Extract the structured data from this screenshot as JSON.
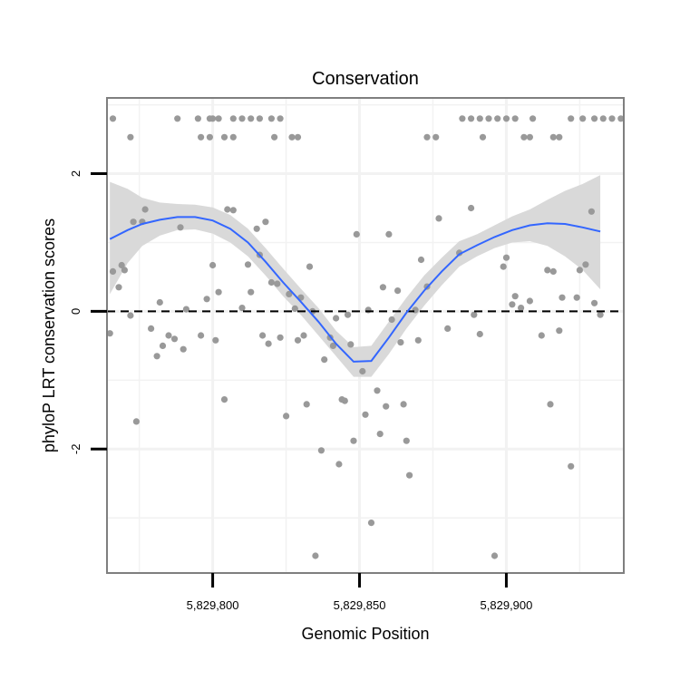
{
  "chart_data": {
    "type": "scatter",
    "title": "Conservation",
    "xlabel": "Genomic Position",
    "ylabel": "phyloP LRT conservation scores",
    "xlim": [
      5829764,
      5829940
    ],
    "ylim": [
      -3.8,
      3.1
    ],
    "x_ticks": [
      5829800,
      5829850,
      5829900
    ],
    "x_tick_labels": [
      "5,829,800",
      "5,829,850",
      "5,829,900"
    ],
    "y_ticks": [
      -2,
      0,
      2
    ],
    "y_tick_labels": [
      "-2",
      "0",
      "2"
    ],
    "grid": true,
    "reference_line": {
      "y": 0,
      "style": "dashed",
      "color": "#000000"
    },
    "colors": {
      "points": "#999999",
      "smooth": "#3366ff",
      "ribbon": "#d9d9d9",
      "panel_border": "#7f7f7f",
      "grid": "#f2f2f2"
    },
    "points": [
      [
        5829766,
        2.8
      ],
      [
        5829788,
        2.8
      ],
      [
        5829795,
        2.8
      ],
      [
        5829800,
        2.8
      ],
      [
        5829807,
        2.8
      ],
      [
        5829810,
        2.8
      ],
      [
        5829813,
        2.8
      ],
      [
        5829816,
        2.8
      ],
      [
        5829820,
        2.8
      ],
      [
        5829823,
        2.8
      ],
      [
        5829799,
        2.8
      ],
      [
        5829802,
        2.8
      ],
      [
        5829885,
        2.8
      ],
      [
        5829888,
        2.8
      ],
      [
        5829891,
        2.8
      ],
      [
        5829894,
        2.8
      ],
      [
        5829897,
        2.8
      ],
      [
        5829900,
        2.8
      ],
      [
        5829903,
        2.8
      ],
      [
        5829909,
        2.8
      ],
      [
        5829922,
        2.8
      ],
      [
        5829926,
        2.8
      ],
      [
        5829930,
        2.8
      ],
      [
        5829933,
        2.8
      ],
      [
        5829936,
        2.8
      ],
      [
        5829939,
        2.8
      ],
      [
        5829772,
        2.53
      ],
      [
        5829796,
        2.53
      ],
      [
        5829799,
        2.53
      ],
      [
        5829804,
        2.53
      ],
      [
        5829807,
        2.53
      ],
      [
        5829821,
        2.53
      ],
      [
        5829827,
        2.53
      ],
      [
        5829829,
        2.53
      ],
      [
        5829873,
        2.53
      ],
      [
        5829876,
        2.53
      ],
      [
        5829892,
        2.53
      ],
      [
        5829906,
        2.53
      ],
      [
        5829908,
        2.53
      ],
      [
        5829916,
        2.53
      ],
      [
        5829918,
        2.53
      ],
      [
        5829765,
        -0.32
      ],
      [
        5829766,
        0.58
      ],
      [
        5829768,
        0.35
      ],
      [
        5829769,
        0.67
      ],
      [
        5829770,
        0.6
      ],
      [
        5829772,
        -0.06
      ],
      [
        5829773,
        1.3
      ],
      [
        5829774,
        -1.6
      ],
      [
        5829776,
        1.3
      ],
      [
        5829777,
        1.48
      ],
      [
        5829779,
        -0.25
      ],
      [
        5829781,
        -0.65
      ],
      [
        5829782,
        0.13
      ],
      [
        5829783,
        -0.5
      ],
      [
        5829785,
        -0.35
      ],
      [
        5829787,
        -0.4
      ],
      [
        5829789,
        1.22
      ],
      [
        5829790,
        -0.55
      ],
      [
        5829791,
        0.03
      ],
      [
        5829796,
        -0.35
      ],
      [
        5829798,
        0.18
      ],
      [
        5829800,
        0.67
      ],
      [
        5829801,
        -0.42
      ],
      [
        5829802,
        0.28
      ],
      [
        5829804,
        -1.28
      ],
      [
        5829805,
        1.48
      ],
      [
        5829807,
        1.47
      ],
      [
        5829810,
        0.05
      ],
      [
        5829812,
        0.68
      ],
      [
        5829813,
        0.28
      ],
      [
        5829815,
        1.2
      ],
      [
        5829816,
        0.82
      ],
      [
        5829817,
        -0.35
      ],
      [
        5829818,
        1.3
      ],
      [
        5829819,
        -0.47
      ],
      [
        5829820,
        0.42
      ],
      [
        5829822,
        0.4
      ],
      [
        5829823,
        -0.38
      ],
      [
        5829825,
        -1.52
      ],
      [
        5829826,
        0.25
      ],
      [
        5829828,
        0.04
      ],
      [
        5829829,
        -0.42
      ],
      [
        5829830,
        0.2
      ],
      [
        5829831,
        -0.35
      ],
      [
        5829832,
        -1.35
      ],
      [
        5829833,
        0.65
      ],
      [
        5829834,
        0.0
      ],
      [
        5829835,
        -3.55
      ],
      [
        5829837,
        -2.02
      ],
      [
        5829838,
        -0.7
      ],
      [
        5829840,
        -0.38
      ],
      [
        5829841,
        -0.5
      ],
      [
        5829842,
        -0.1
      ],
      [
        5829843,
        -2.22
      ],
      [
        5829844,
        -1.28
      ],
      [
        5829845,
        -1.3
      ],
      [
        5829846,
        -0.05
      ],
      [
        5829847,
        -0.48
      ],
      [
        5829848,
        -1.88
      ],
      [
        5829849,
        1.12
      ],
      [
        5829851,
        -0.87
      ],
      [
        5829852,
        -1.5
      ],
      [
        5829853,
        0.02
      ],
      [
        5829854,
        -3.07
      ],
      [
        5829856,
        -1.15
      ],
      [
        5829857,
        -1.78
      ],
      [
        5829858,
        0.35
      ],
      [
        5829859,
        -1.38
      ],
      [
        5829860,
        1.12
      ],
      [
        5829861,
        -0.12
      ],
      [
        5829863,
        0.3
      ],
      [
        5829864,
        -0.45
      ],
      [
        5829865,
        -1.35
      ],
      [
        5829866,
        -1.88
      ],
      [
        5829867,
        -2.38
      ],
      [
        5829869,
        0.02
      ],
      [
        5829870,
        -0.42
      ],
      [
        5829871,
        0.75
      ],
      [
        5829873,
        0.36
      ],
      [
        5829877,
        1.35
      ],
      [
        5829880,
        -0.25
      ],
      [
        5829884,
        0.85
      ],
      [
        5829888,
        1.5
      ],
      [
        5829889,
        -0.05
      ],
      [
        5829891,
        -0.33
      ],
      [
        5829896,
        -3.55
      ],
      [
        5829899,
        0.65
      ],
      [
        5829900,
        0.78
      ],
      [
        5829902,
        0.1
      ],
      [
        5829903,
        0.22
      ],
      [
        5829905,
        0.05
      ],
      [
        5829908,
        0.15
      ],
      [
        5829912,
        -0.35
      ],
      [
        5829914,
        0.6
      ],
      [
        5829915,
        -1.35
      ],
      [
        5829916,
        0.58
      ],
      [
        5829918,
        -0.28
      ],
      [
        5829919,
        0.2
      ],
      [
        5829922,
        -2.25
      ],
      [
        5829924,
        0.2
      ],
      [
        5829925,
        0.6
      ],
      [
        5829927,
        0.68
      ],
      [
        5829929,
        1.45
      ],
      [
        5829930,
        0.12
      ],
      [
        5829932,
        -0.05
      ]
    ],
    "smooth": {
      "x": [
        5829765,
        5829771,
        5829776,
        5829782,
        5829788,
        5829794,
        5829800,
        5829806,
        5829812,
        5829818,
        5829824,
        5829830,
        5829836,
        5829842,
        5829848,
        5829854,
        5829860,
        5829866,
        5829872,
        5829878,
        5829884,
        5829890,
        5829896,
        5829902,
        5829908,
        5829914,
        5829920,
        5829926,
        5829932
      ],
      "y": [
        1.05,
        1.18,
        1.27,
        1.33,
        1.37,
        1.37,
        1.32,
        1.2,
        1.0,
        0.72,
        0.42,
        0.14,
        -0.15,
        -0.47,
        -0.73,
        -0.72,
        -0.38,
        -0.02,
        0.3,
        0.58,
        0.83,
        0.96,
        1.08,
        1.18,
        1.25,
        1.28,
        1.27,
        1.22,
        1.16
      ],
      "lower": [
        0.25,
        0.7,
        0.95,
        1.1,
        1.18,
        1.19,
        1.13,
        1.0,
        0.8,
        0.52,
        0.22,
        -0.05,
        -0.35,
        -0.65,
        -0.95,
        -0.95,
        -0.62,
        -0.25,
        0.08,
        0.38,
        0.65,
        0.8,
        0.92,
        1.0,
        1.02,
        0.95,
        0.8,
        0.6,
        0.32
      ],
      "upper": [
        1.88,
        1.78,
        1.65,
        1.58,
        1.56,
        1.55,
        1.51,
        1.4,
        1.2,
        0.92,
        0.62,
        0.33,
        0.05,
        -0.28,
        -0.52,
        -0.5,
        -0.15,
        0.2,
        0.52,
        0.78,
        1.02,
        1.12,
        1.25,
        1.38,
        1.48,
        1.62,
        1.75,
        1.85,
        1.98
      ]
    }
  }
}
